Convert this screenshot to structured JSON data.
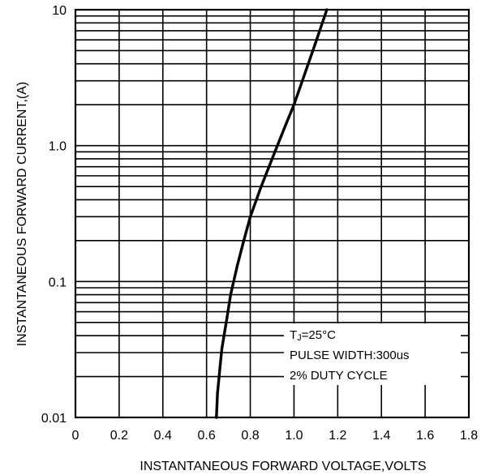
{
  "chart_data": {
    "type": "line",
    "xlabel": "INSTANTANEOUS FORWARD VOLTAGE,VOLTS",
    "ylabel": "INSTANTANEOUS FORWARD CURRENT,(A)",
    "xlim": [
      0,
      1.8
    ],
    "ylim": [
      0.01,
      10
    ],
    "yscale": "log",
    "grid": true,
    "x_ticks": [
      "0",
      "0.2",
      "0.4",
      "0.6",
      "0.8",
      "1.0",
      "1.2",
      "1.4",
      "1.6",
      "1.8"
    ],
    "x_tick_values": [
      0,
      0.2,
      0.4,
      0.6,
      0.8,
      1.0,
      1.2,
      1.4,
      1.6,
      1.8
    ],
    "y_ticks": [
      "0.01",
      "0.1",
      "1.0",
      "10"
    ],
    "y_tick_values": [
      0.01,
      0.1,
      1.0,
      10
    ],
    "annotation": {
      "line1_main": "T",
      "line1_sub": "J",
      "line1_rest": "=25°C",
      "line2": "PULSE WIDTH:300us",
      "line3": "2% DUTY CYCLE"
    },
    "series": [
      {
        "x": [
          0.645,
          0.65,
          0.66,
          0.67,
          0.69,
          0.71,
          0.74,
          0.77,
          0.8,
          0.85,
          0.9,
          0.96,
          1.0,
          1.05,
          1.1,
          1.15
        ],
        "y": [
          0.01,
          0.015,
          0.022,
          0.032,
          0.05,
          0.08,
          0.13,
          0.2,
          0.3,
          0.5,
          0.8,
          1.4,
          2.0,
          3.4,
          5.8,
          10
        ]
      }
    ]
  }
}
